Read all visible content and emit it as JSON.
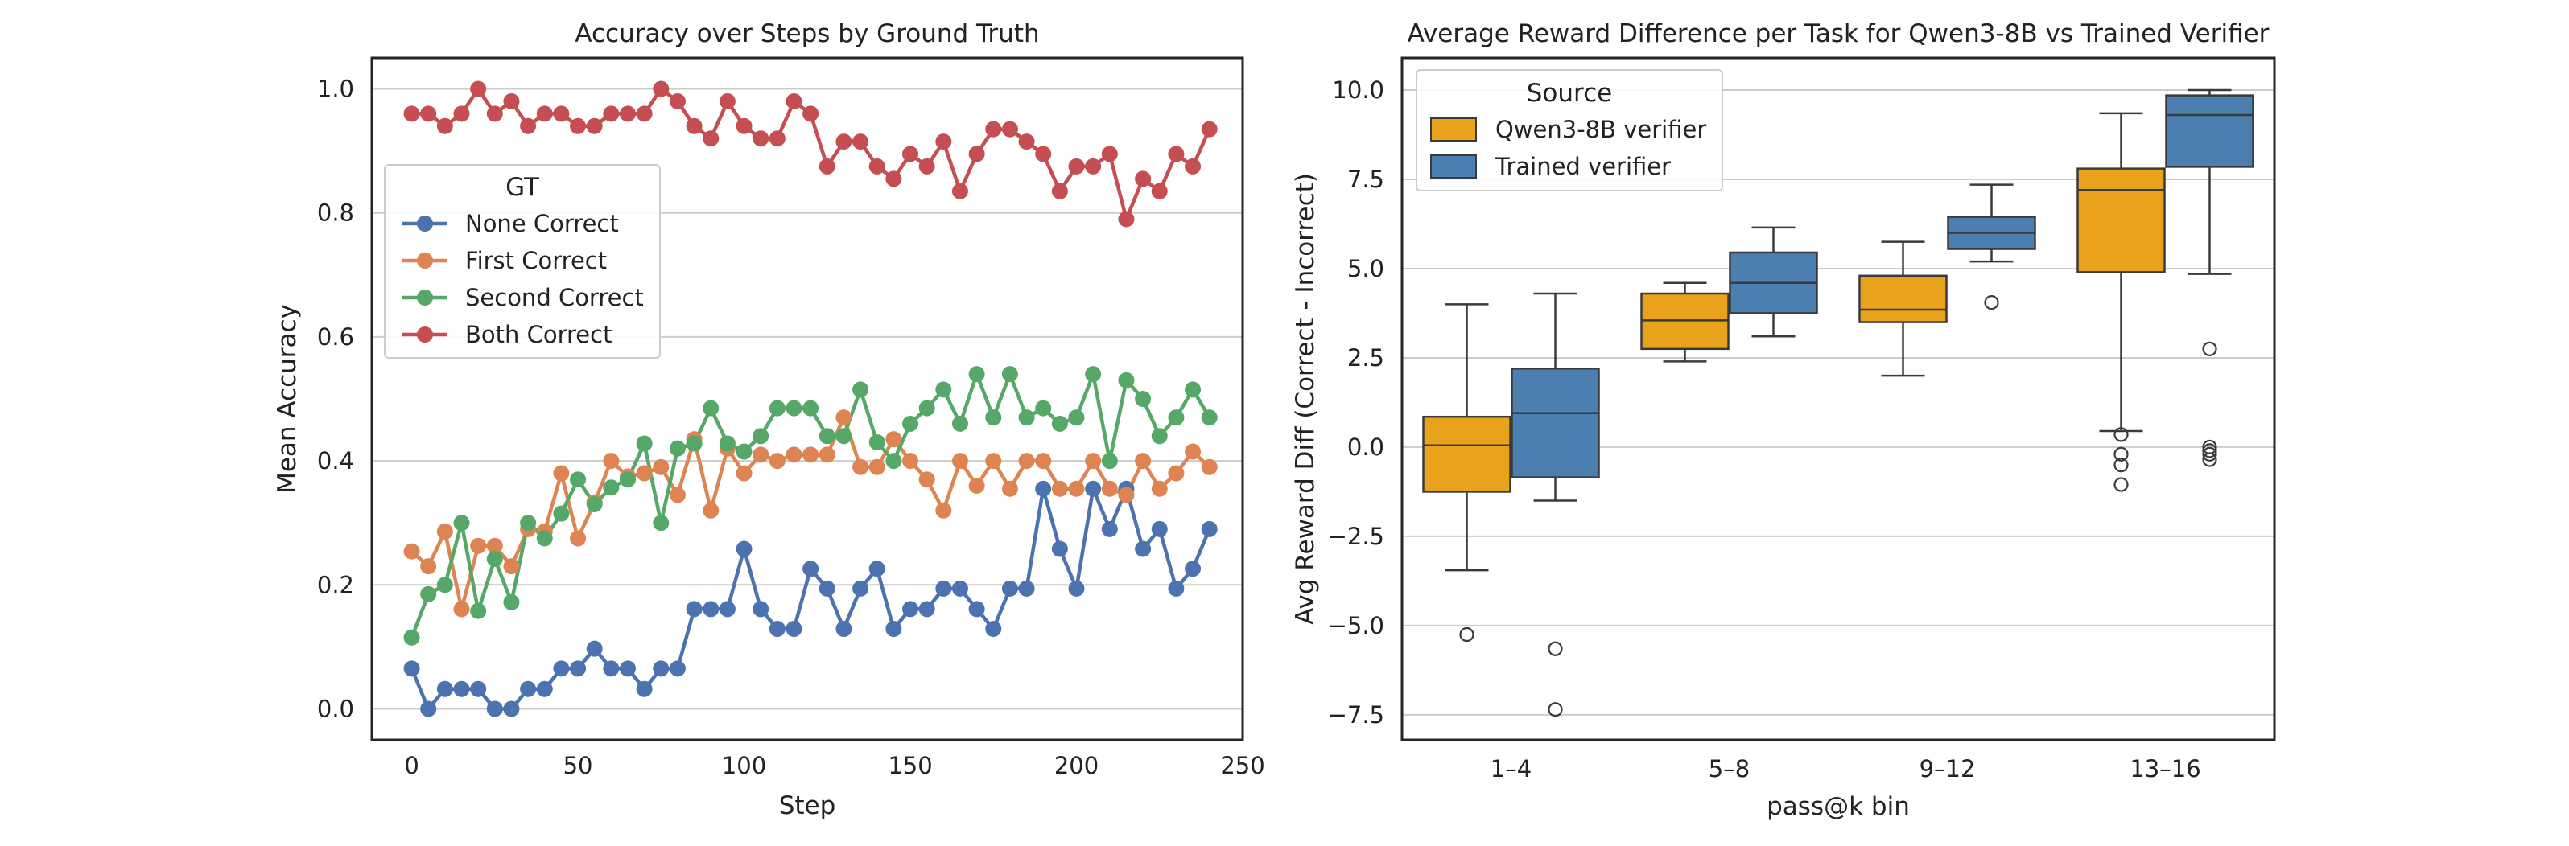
{
  "chart_data": [
    {
      "type": "line",
      "title": "Accuracy over Steps by Ground Truth",
      "xlabel": "Step",
      "ylabel": "Mean Accuracy",
      "xlim": [
        -12,
        250
      ],
      "ylim": [
        -0.05,
        1.05
      ],
      "xticks": [
        0,
        50,
        100,
        150,
        200,
        250
      ],
      "yticks": [
        0.0,
        0.2,
        0.4,
        0.6,
        0.8,
        1.0
      ],
      "ytick_labels": [
        "0.0",
        "0.2",
        "0.4",
        "0.6",
        "0.8",
        "1.0"
      ],
      "grid": "horizontal",
      "legend_title": "GT",
      "legend_position": "center-left",
      "x": [
        0,
        5,
        10,
        15,
        20,
        25,
        30,
        35,
        40,
        45,
        50,
        55,
        60,
        65,
        70,
        75,
        80,
        85,
        90,
        95,
        100,
        105,
        110,
        115,
        120,
        125,
        130,
        135,
        140,
        145,
        150,
        155,
        160,
        165,
        170,
        175,
        180,
        185,
        190,
        195,
        200,
        205,
        210,
        215,
        220,
        225,
        230,
        235,
        240
      ],
      "series": [
        {
          "name": "None Correct",
          "color": "#4c72b0",
          "values": [
            0.065,
            0.0,
            0.032,
            0.032,
            0.032,
            0.0,
            0.0,
            0.032,
            0.032,
            0.065,
            0.065,
            0.097,
            0.065,
            0.065,
            0.032,
            0.065,
            0.065,
            0.161,
            0.161,
            0.161,
            0.258,
            0.161,
            0.129,
            0.129,
            0.226,
            0.194,
            0.129,
            0.194,
            0.226,
            0.129,
            0.161,
            0.161,
            0.194,
            0.194,
            0.161,
            0.129,
            0.194,
            0.194,
            0.355,
            0.258,
            0.194,
            0.355,
            0.29,
            0.355,
            0.258,
            0.29,
            0.194,
            0.226,
            0.29
          ]
        },
        {
          "name": "First Correct",
          "color": "#dd8452",
          "values": [
            0.254,
            0.23,
            0.286,
            0.161,
            0.263,
            0.263,
            0.23,
            0.29,
            0.286,
            0.38,
            0.275,
            0.333,
            0.4,
            0.375,
            0.38,
            0.39,
            0.345,
            0.435,
            0.32,
            0.42,
            0.38,
            0.41,
            0.4,
            0.41,
            0.41,
            0.41,
            0.47,
            0.39,
            0.39,
            0.435,
            0.4,
            0.37,
            0.32,
            0.4,
            0.36,
            0.4,
            0.355,
            0.4,
            0.4,
            0.355,
            0.355,
            0.4,
            0.355,
            0.345,
            0.4,
            0.355,
            0.38,
            0.415,
            0.39
          ]
        },
        {
          "name": "Second Correct",
          "color": "#55a868",
          "values": [
            0.115,
            0.185,
            0.2,
            0.3,
            0.158,
            0.242,
            0.172,
            0.3,
            0.275,
            0.315,
            0.37,
            0.33,
            0.357,
            0.37,
            0.428,
            0.3,
            0.42,
            0.428,
            0.485,
            0.428,
            0.415,
            0.44,
            0.485,
            0.485,
            0.485,
            0.44,
            0.44,
            0.515,
            0.43,
            0.4,
            0.46,
            0.485,
            0.515,
            0.46,
            0.54,
            0.47,
            0.54,
            0.47,
            0.485,
            0.46,
            0.47,
            0.54,
            0.4,
            0.53,
            0.5,
            0.44,
            0.47,
            0.515,
            0.47
          ]
        },
        {
          "name": "Both Correct",
          "color": "#c44e52",
          "values": [
            0.96,
            0.96,
            0.94,
            0.96,
            1.0,
            0.96,
            0.98,
            0.94,
            0.96,
            0.96,
            0.94,
            0.94,
            0.96,
            0.96,
            0.96,
            1.0,
            0.98,
            0.94,
            0.92,
            0.98,
            0.94,
            0.92,
            0.92,
            0.98,
            0.96,
            0.875,
            0.915,
            0.915,
            0.875,
            0.855,
            0.895,
            0.875,
            0.915,
            0.835,
            0.895,
            0.935,
            0.935,
            0.915,
            0.895,
            0.835,
            0.875,
            0.875,
            0.895,
            0.79,
            0.855,
            0.835,
            0.895,
            0.875,
            0.935
          ]
        }
      ]
    },
    {
      "type": "boxplot",
      "title": "Average Reward Difference per Task for Qwen3-8B vs Trained Verifier",
      "xlabel": "pass@k bin",
      "ylabel": "Avg Reward Diff (Correct - Incorrect)",
      "categories": [
        "1–4",
        "5–8",
        "9–12",
        "13–16"
      ],
      "ylim": [
        -8.2,
        10.9
      ],
      "yticks": [
        -7.5,
        -5.0,
        -2.5,
        0.0,
        2.5,
        5.0,
        7.5,
        10.0
      ],
      "ytick_labels": [
        "−7.5",
        "−5.0",
        "−2.5",
        "0.0",
        "2.5",
        "5.0",
        "7.5",
        "10.0"
      ],
      "grid": "horizontal",
      "legend_title": "Source",
      "legend_position": "top-left",
      "series": [
        {
          "name": "Qwen3-8B verifier",
          "color": "#e8a21b",
          "boxes": [
            {
              "whislo": -3.45,
              "q1": -1.25,
              "med": 0.05,
              "q3": 0.85,
              "whishi": 4.0,
              "fliers": [
                -5.25
              ]
            },
            {
              "whislo": 2.4,
              "q1": 2.75,
              "med": 3.55,
              "q3": 4.3,
              "whishi": 4.6,
              "fliers": []
            },
            {
              "whislo": 2.0,
              "q1": 3.5,
              "med": 3.85,
              "q3": 4.8,
              "whishi": 5.75,
              "fliers": []
            },
            {
              "whislo": 0.45,
              "q1": 4.9,
              "med": 7.2,
              "q3": 7.8,
              "whishi": 9.35,
              "fliers": [
                0.35,
                -0.2,
                -0.5,
                -1.05
              ]
            }
          ]
        },
        {
          "name": "Trained verifier",
          "color": "#4a7fb0",
          "boxes": [
            {
              "whislo": -1.5,
              "q1": -0.85,
              "med": 0.95,
              "q3": 2.2,
              "whishi": 4.3,
              "fliers": [
                -5.65,
                -7.35
              ]
            },
            {
              "whislo": 3.1,
              "q1": 3.75,
              "med": 4.6,
              "q3": 5.45,
              "whishi": 6.15,
              "fliers": []
            },
            {
              "whislo": 5.2,
              "q1": 5.55,
              "med": 6.0,
              "q3": 6.45,
              "whishi": 7.35,
              "fliers": [
                4.05
              ]
            },
            {
              "whislo": 4.85,
              "q1": 7.85,
              "med": 9.3,
              "q3": 9.85,
              "whishi": 10.0,
              "fliers": [
                2.75,
                0.0,
                -0.1,
                -0.2,
                -0.35
              ]
            }
          ]
        }
      ]
    }
  ]
}
